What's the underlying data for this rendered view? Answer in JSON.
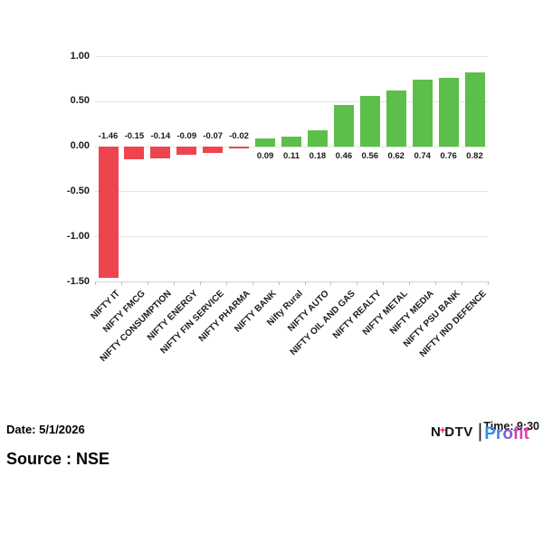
{
  "chart_data": {
    "type": "bar",
    "categories": [
      "NIFTY IT",
      "NIFTY FMCG",
      "NIFTY CONSUMPTION",
      "NIFTY ENERGY",
      "NIFTY FIN SERVICE",
      "NIFTY PHARMA",
      "NIFTY BANK",
      "Nifty Rural",
      "NIFTY AUTO",
      "NIFTY OIL AND GAS",
      "NIFTY REALTY",
      "NIFTY METAL",
      "NIFTY MEDIA",
      "NIFTY PSU BANK",
      "NIFTY IND DEFENCE"
    ],
    "values": [
      -1.46,
      -0.15,
      -0.14,
      -0.09,
      -0.07,
      -0.02,
      0.09,
      0.11,
      0.18,
      0.46,
      0.56,
      0.62,
      0.74,
      0.76,
      0.82
    ],
    "title": "",
    "xlabel": "",
    "ylabel": "",
    "y_ticks": [
      "1.00",
      "0.50",
      "0.00",
      "-0.50",
      "-1.00",
      "-1.50"
    ],
    "ylim": [
      -1.5,
      1.0
    ],
    "grid": true,
    "legend": "none",
    "colors": {
      "positive": "#5cbf4a",
      "negative": "#ee4450",
      "gridline": "#e4e4e4"
    }
  },
  "footer": {
    "date_label": "Date: 5/1/2026",
    "source_label": "Source : NSE",
    "time_label": "Time: 9:30"
  },
  "logo": {
    "ndtv_n": "N",
    "plus": "+",
    "ndtv_dtv": "DTV",
    "separator": "|",
    "profit": "Profit",
    "colors": {
      "ndtv": "#141414",
      "plus": "#e8103e",
      "profit_start": "#1e9be9",
      "profit_end": "#f23da6"
    }
  }
}
